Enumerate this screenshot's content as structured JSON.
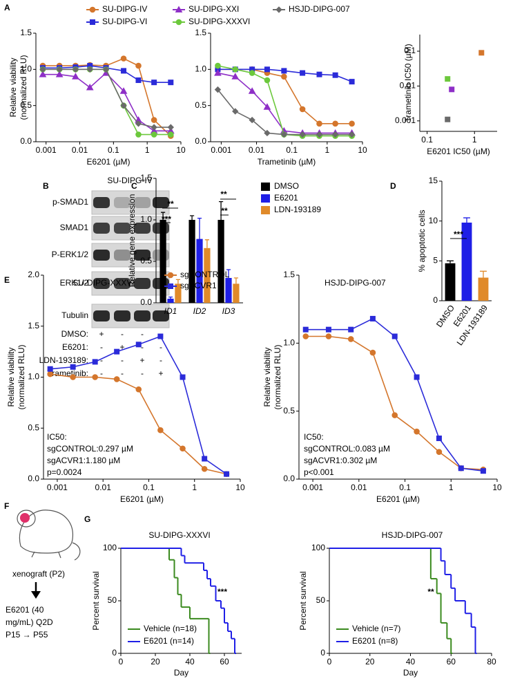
{
  "figure": {
    "panel_labels": [
      "A",
      "B",
      "C",
      "D",
      "E",
      "F",
      "G"
    ],
    "blot": {
      "title": "SU-DIPG-IV",
      "bands": [
        "p-SMAD1",
        "SMAD1",
        "P-ERK1/2",
        "ERK1/2",
        "Tubulin"
      ],
      "treatments": [
        {
          "name": "DMSO:",
          "marks": [
            "+",
            "-",
            "-",
            "-"
          ]
        },
        {
          "name": "E6201:",
          "marks": [
            "-",
            "+",
            "-",
            "-"
          ]
        },
        {
          "name": "LDN-193189:",
          "marks": [
            "-",
            "-",
            "+",
            "-"
          ]
        },
        {
          "name": "Trametinib:",
          "marks": [
            "-",
            "-",
            "-",
            "+"
          ]
        }
      ]
    },
    "schematic": {
      "lines": [
        "xenograft (P2)",
        "E6201 (40",
        "mg/mL) Q2D",
        "P15 → P55"
      ]
    }
  },
  "chart_data": [
    {
      "type": "line",
      "xscale": "log",
      "x_label": "E6201 (µM)",
      "y_label": [
        "Relative viability",
        "(normalized RLU)"
      ],
      "x": [
        0.0008,
        0.0025,
        0.0075,
        0.02,
        0.06,
        0.2,
        0.55,
        1.6,
        5
      ],
      "xlim": [
        0.0005,
        10
      ],
      "xticks": [
        0.001,
        0.01,
        0.1,
        1,
        10
      ],
      "ylim": [
        0,
        1.5
      ],
      "yticks": [
        {
          "value": 0,
          "label": "0.0"
        },
        {
          "value": 0.5,
          "label": "0.5"
        },
        {
          "value": 1,
          "label": "1.0"
        },
        {
          "value": 1.5,
          "label": "1.5"
        }
      ],
      "series": [
        {
          "name": "SU-DIPG-IV",
          "color": "#d4762c",
          "marker": "circle",
          "values": [
            1.05,
            1.05,
            1.05,
            1.06,
            1.05,
            1.15,
            1.05,
            0.3,
            0.08
          ]
        },
        {
          "name": "SU-DIPG-VI",
          "color": "#2b2bd9",
          "marker": "square",
          "values": [
            1.02,
            1.02,
            1.03,
            1.05,
            1.02,
            0.98,
            0.85,
            0.82,
            0.82
          ]
        },
        {
          "name": "SU-DIPG-XXI",
          "color": "#8e2fc7",
          "marker": "triangle",
          "values": [
            0.93,
            0.93,
            0.9,
            0.75,
            0.95,
            0.7,
            0.3,
            0.15,
            0.15
          ]
        },
        {
          "name": "SU-DIPG-XXXVI",
          "color": "#6cc83c",
          "marker": "circle",
          "values": [
            1.0,
            1.0,
            1.0,
            1.0,
            1.0,
            0.5,
            0.1,
            0.1,
            0.1
          ]
        },
        {
          "name": "HSJD-DIPG-007",
          "color": "#6a6a6a",
          "marker": "diamond",
          "values": [
            1.0,
            1.0,
            1.0,
            1.0,
            1.0,
            0.5,
            0.25,
            0.2,
            0.2
          ]
        }
      ]
    },
    {
      "type": "line",
      "xscale": "log",
      "x_label": "Trametinib (µM)",
      "x": [
        0.0008,
        0.0025,
        0.0075,
        0.02,
        0.06,
        0.2,
        0.6,
        1.7,
        5
      ],
      "xlim": [
        0.0005,
        10
      ],
      "xticks": [
        0.001,
        0.01,
        0.1,
        1,
        10
      ],
      "ylim": [
        0,
        1.5
      ],
      "yticks": [
        {
          "value": 0,
          "label": "0.0"
        },
        {
          "value": 0.5,
          "label": "0.5"
        },
        {
          "value": 1,
          "label": "1.0"
        },
        {
          "value": 1.5,
          "label": "1.5"
        }
      ],
      "series": [
        {
          "color": "#d4762c",
          "marker": "circle",
          "values": [
            1.0,
            1.0,
            1.0,
            0.95,
            0.9,
            0.45,
            0.25,
            0.25,
            0.25
          ]
        },
        {
          "color": "#2b2bd9",
          "marker": "square",
          "values": [
            1.0,
            1.0,
            1.0,
            1.0,
            0.98,
            0.95,
            0.93,
            0.92,
            0.83
          ]
        },
        {
          "color": "#8e2fc7",
          "marker": "triangle",
          "values": [
            0.95,
            0.9,
            0.7,
            0.48,
            0.15,
            0.12,
            0.12,
            0.12,
            0.12
          ]
        },
        {
          "color": "#6cc83c",
          "marker": "circle",
          "values": [
            1.05,
            1.0,
            0.95,
            0.85,
            0.1,
            0.08,
            0.08,
            0.08,
            0.08
          ]
        },
        {
          "color": "#6a6a6a",
          "marker": "diamond",
          "values": [
            0.72,
            0.42,
            0.3,
            0.12,
            0.1,
            0.1,
            0.1,
            0.1,
            0.1
          ]
        }
      ]
    },
    {
      "type": "scatter",
      "xscale": "log",
      "yscale": "log",
      "x_label": "E6201 IC50 (µM)",
      "y_label": [
        "Trametinib IC50 (µM)"
      ],
      "xlim": [
        0.07,
        3
      ],
      "xticks": [
        0.1,
        1
      ],
      "ylim": [
        0.0005,
        0.3
      ],
      "yticks": [
        0.001,
        0.01,
        0.1
      ],
      "series": [
        {
          "color": "#d4762c",
          "marker": "square",
          "x": [
            1.4
          ],
          "values": [
            0.09
          ]
        },
        {
          "color": "#8e2fc7",
          "marker": "square",
          "x": [
            0.33
          ],
          "values": [
            0.008
          ]
        },
        {
          "color": "#6cc83c",
          "marker": "square",
          "x": [
            0.27
          ],
          "values": [
            0.016
          ]
        },
        {
          "color": "#6a6a6a",
          "marker": "square",
          "x": [
            0.27
          ],
          "values": [
            0.0011
          ]
        }
      ]
    },
    {
      "type": "bar",
      "y_label": [
        "Relative gene expression"
      ],
      "categories": [
        "ID1",
        "ID2",
        "ID3"
      ],
      "ylim": [
        0,
        1.5
      ],
      "yticks": [
        {
          "value": 0,
          "label": "0.0"
        },
        {
          "value": 0.5,
          "label": "0.5"
        },
        {
          "value": 1,
          "label": "1.0"
        },
        {
          "value": 1.5,
          "label": "1.5"
        }
      ],
      "series": [
        {
          "name": "DMSO",
          "color": "#000000",
          "values": [
            1.0,
            1.0,
            1.0
          ],
          "errors": [
            0.09,
            0.05,
            0.22
          ]
        },
        {
          "name": "E6201",
          "color": "#1f1fe6",
          "values": [
            0.05,
            0.77,
            0.3
          ],
          "errors": [
            0.02,
            0.25,
            0.1
          ]
        },
        {
          "name": "LDN-193189",
          "color": "#e08a2a",
          "values": [
            0.23,
            0.66,
            0.23
          ],
          "errors": [
            0.05,
            0.1,
            0.07
          ]
        }
      ],
      "annotations": [
        "***",
        "**",
        "**",
        "**"
      ]
    },
    {
      "type": "bar",
      "y_label": [
        "% apoptotic cells"
      ],
      "categories": [
        "DMSO",
        "E6201",
        "LDN-193189"
      ],
      "values": [
        4.7,
        9.8,
        2.9
      ],
      "errors": [
        0.3,
        0.6,
        0.8
      ],
      "colors": [
        "#000000",
        "#1f1fe6",
        "#e08a2a"
      ],
      "ylim": [
        0,
        15
      ],
      "yticks": [
        0,
        5,
        10,
        15
      ],
      "annotations": [
        "***"
      ]
    },
    {
      "type": "line",
      "xscale": "log",
      "title": "SU-DIPG-XXXVI",
      "x_label": "E6201 (µM)",
      "y_label": [
        "Relative viability",
        "(normalized RLU)"
      ],
      "x": [
        0.0007,
        0.0022,
        0.0067,
        0.02,
        0.06,
        0.18,
        0.55,
        1.65,
        5
      ],
      "xlim": [
        0.0005,
        10
      ],
      "xticks": [
        0.001,
        0.01,
        0.1,
        1,
        10
      ],
      "ylim": [
        0,
        2
      ],
      "yticks": [
        {
          "value": 0,
          "label": "0.0"
        },
        {
          "value": 0.5,
          "label": "0.5"
        },
        {
          "value": 1,
          "label": "1.0"
        },
        {
          "value": 1.5,
          "label": "1.5"
        },
        {
          "value": 2,
          "label": "2.0"
        }
      ],
      "series": [
        {
          "name": "sgCONTROL",
          "color": "#d4762c",
          "marker": "circle",
          "values": [
            1.03,
            1.0,
            1.0,
            0.98,
            0.88,
            0.48,
            0.3,
            0.1,
            0.05
          ]
        },
        {
          "name": "sgACVR1",
          "color": "#2b2bd9",
          "marker": "square",
          "values": [
            1.08,
            1.1,
            1.15,
            1.25,
            1.32,
            1.4,
            1.0,
            0.2,
            0.05
          ]
        }
      ],
      "annotations": [
        "IC50:",
        "sgCONTROL:0.297 µM",
        "sgACVR1:1.180 µM",
        "p=0.0024"
      ]
    },
    {
      "type": "line",
      "xscale": "log",
      "title": "HSJD-DIPG-007",
      "x_label": "E6201 (µM)",
      "y_label": [
        "Relative viability",
        "(normalized RLU)"
      ],
      "x": [
        0.0007,
        0.0022,
        0.0067,
        0.02,
        0.06,
        0.18,
        0.55,
        1.65,
        5
      ],
      "xlim": [
        0.0005,
        10
      ],
      "xticks": [
        0.001,
        0.01,
        0.1,
        1,
        10
      ],
      "ylim": [
        0,
        1.5
      ],
      "yticks": [
        {
          "value": 0,
          "label": "0.0"
        },
        {
          "value": 0.5,
          "label": "0.5"
        },
        {
          "value": 1,
          "label": "1.0"
        },
        {
          "value": 1.5,
          "label": "1.5"
        }
      ],
      "series": [
        {
          "color": "#d4762c",
          "marker": "circle",
          "values": [
            1.05,
            1.05,
            1.03,
            0.93,
            0.47,
            0.35,
            0.2,
            0.08,
            0.07
          ]
        },
        {
          "color": "#2b2bd9",
          "marker": "square",
          "values": [
            1.1,
            1.1,
            1.1,
            1.18,
            1.05,
            0.75,
            0.3,
            0.08,
            0.06
          ]
        }
      ],
      "annotations": [
        "IC50:",
        "sgCONTROL:0.083 µM",
        "sgACVR1:0.302 µM",
        "p<0.001"
      ]
    },
    {
      "type": "step",
      "title": "SU-DIPG-XXXVI",
      "x_label": "Day",
      "y_label": [
        "Percent survival"
      ],
      "xlim": [
        0,
        70
      ],
      "xticks": [
        0,
        20,
        40,
        60
      ],
      "ylim": [
        0,
        100
      ],
      "yticks": [
        0,
        50,
        100
      ],
      "series": [
        {
          "name": "Vehicle (n=18)",
          "color": "#3a8a1e",
          "x": [
            0,
            28,
            31,
            33,
            35,
            40,
            51
          ],
          "values": [
            100,
            89,
            72,
            56,
            44,
            33,
            0
          ]
        },
        {
          "name": "E6201 (n=14)",
          "color": "#1f1fe6",
          "x": [
            0,
            35,
            37,
            48,
            50,
            52,
            55,
            58,
            60,
            62,
            64,
            66
          ],
          "values": [
            100,
            93,
            86,
            79,
            71,
            64,
            50,
            43,
            29,
            21,
            14,
            0
          ]
        }
      ],
      "annotations": [
        "***"
      ]
    },
    {
      "type": "step",
      "title": "HSJD-DIPG-007",
      "x_label": "Day",
      "y_label": [
        "Percent survival"
      ],
      "xlim": [
        0,
        80
      ],
      "xticks": [
        0,
        20,
        40,
        60,
        80
      ],
      "ylim": [
        0,
        100
      ],
      "yticks": [
        0,
        50,
        100
      ],
      "series": [
        {
          "name": "Vehicle (n=7)",
          "color": "#3a8a1e",
          "x": [
            0,
            50,
            53,
            55,
            58,
            60
          ],
          "values": [
            100,
            71,
            57,
            29,
            14,
            0
          ]
        },
        {
          "name": "E6201 (n=8)",
          "color": "#1f1fe6",
          "x": [
            0,
            55,
            57,
            60,
            62,
            67,
            70,
            72
          ],
          "values": [
            100,
            88,
            75,
            62,
            50,
            38,
            25,
            0
          ]
        }
      ],
      "annotations": [
        "**"
      ]
    }
  ]
}
